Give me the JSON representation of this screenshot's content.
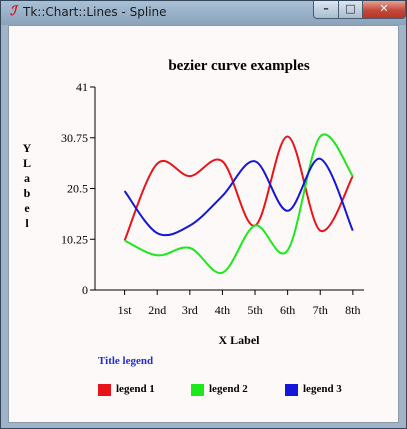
{
  "window": {
    "title": "Tk::Chart::Lines - Spline",
    "app_icon": "tk-feather-icon"
  },
  "controls": {
    "minimize": "–",
    "maximize": "□",
    "close": "✕"
  },
  "chart_data": {
    "type": "line",
    "title": "bezier curve examples",
    "xlabel": "X Label",
    "ylabel": "Y Label",
    "categories": [
      "1st",
      "2nd",
      "3rd",
      "4th",
      "5th",
      "6th",
      "7th",
      "8th"
    ],
    "y_ticks": [
      "0",
      "10.25",
      "20.5",
      "30.75",
      "41"
    ],
    "ylim": [
      0,
      41
    ],
    "curve": "bezier spline",
    "series": [
      {
        "name": "legend 1",
        "color": "#e8141a",
        "values": [
          10,
          25.5,
          23,
          26,
          13,
          31,
          12,
          23
        ]
      },
      {
        "name": "legend 2",
        "color": "#1de81d",
        "values": [
          10,
          7,
          8.5,
          3.5,
          13,
          8,
          31,
          23
        ]
      },
      {
        "name": "legend 3",
        "color": "#1416d8",
        "values": [
          20,
          11.5,
          13,
          19,
          26,
          16,
          26.5,
          12
        ]
      }
    ],
    "legend_title": "Title legend",
    "legend_position": "bottom-left"
  }
}
